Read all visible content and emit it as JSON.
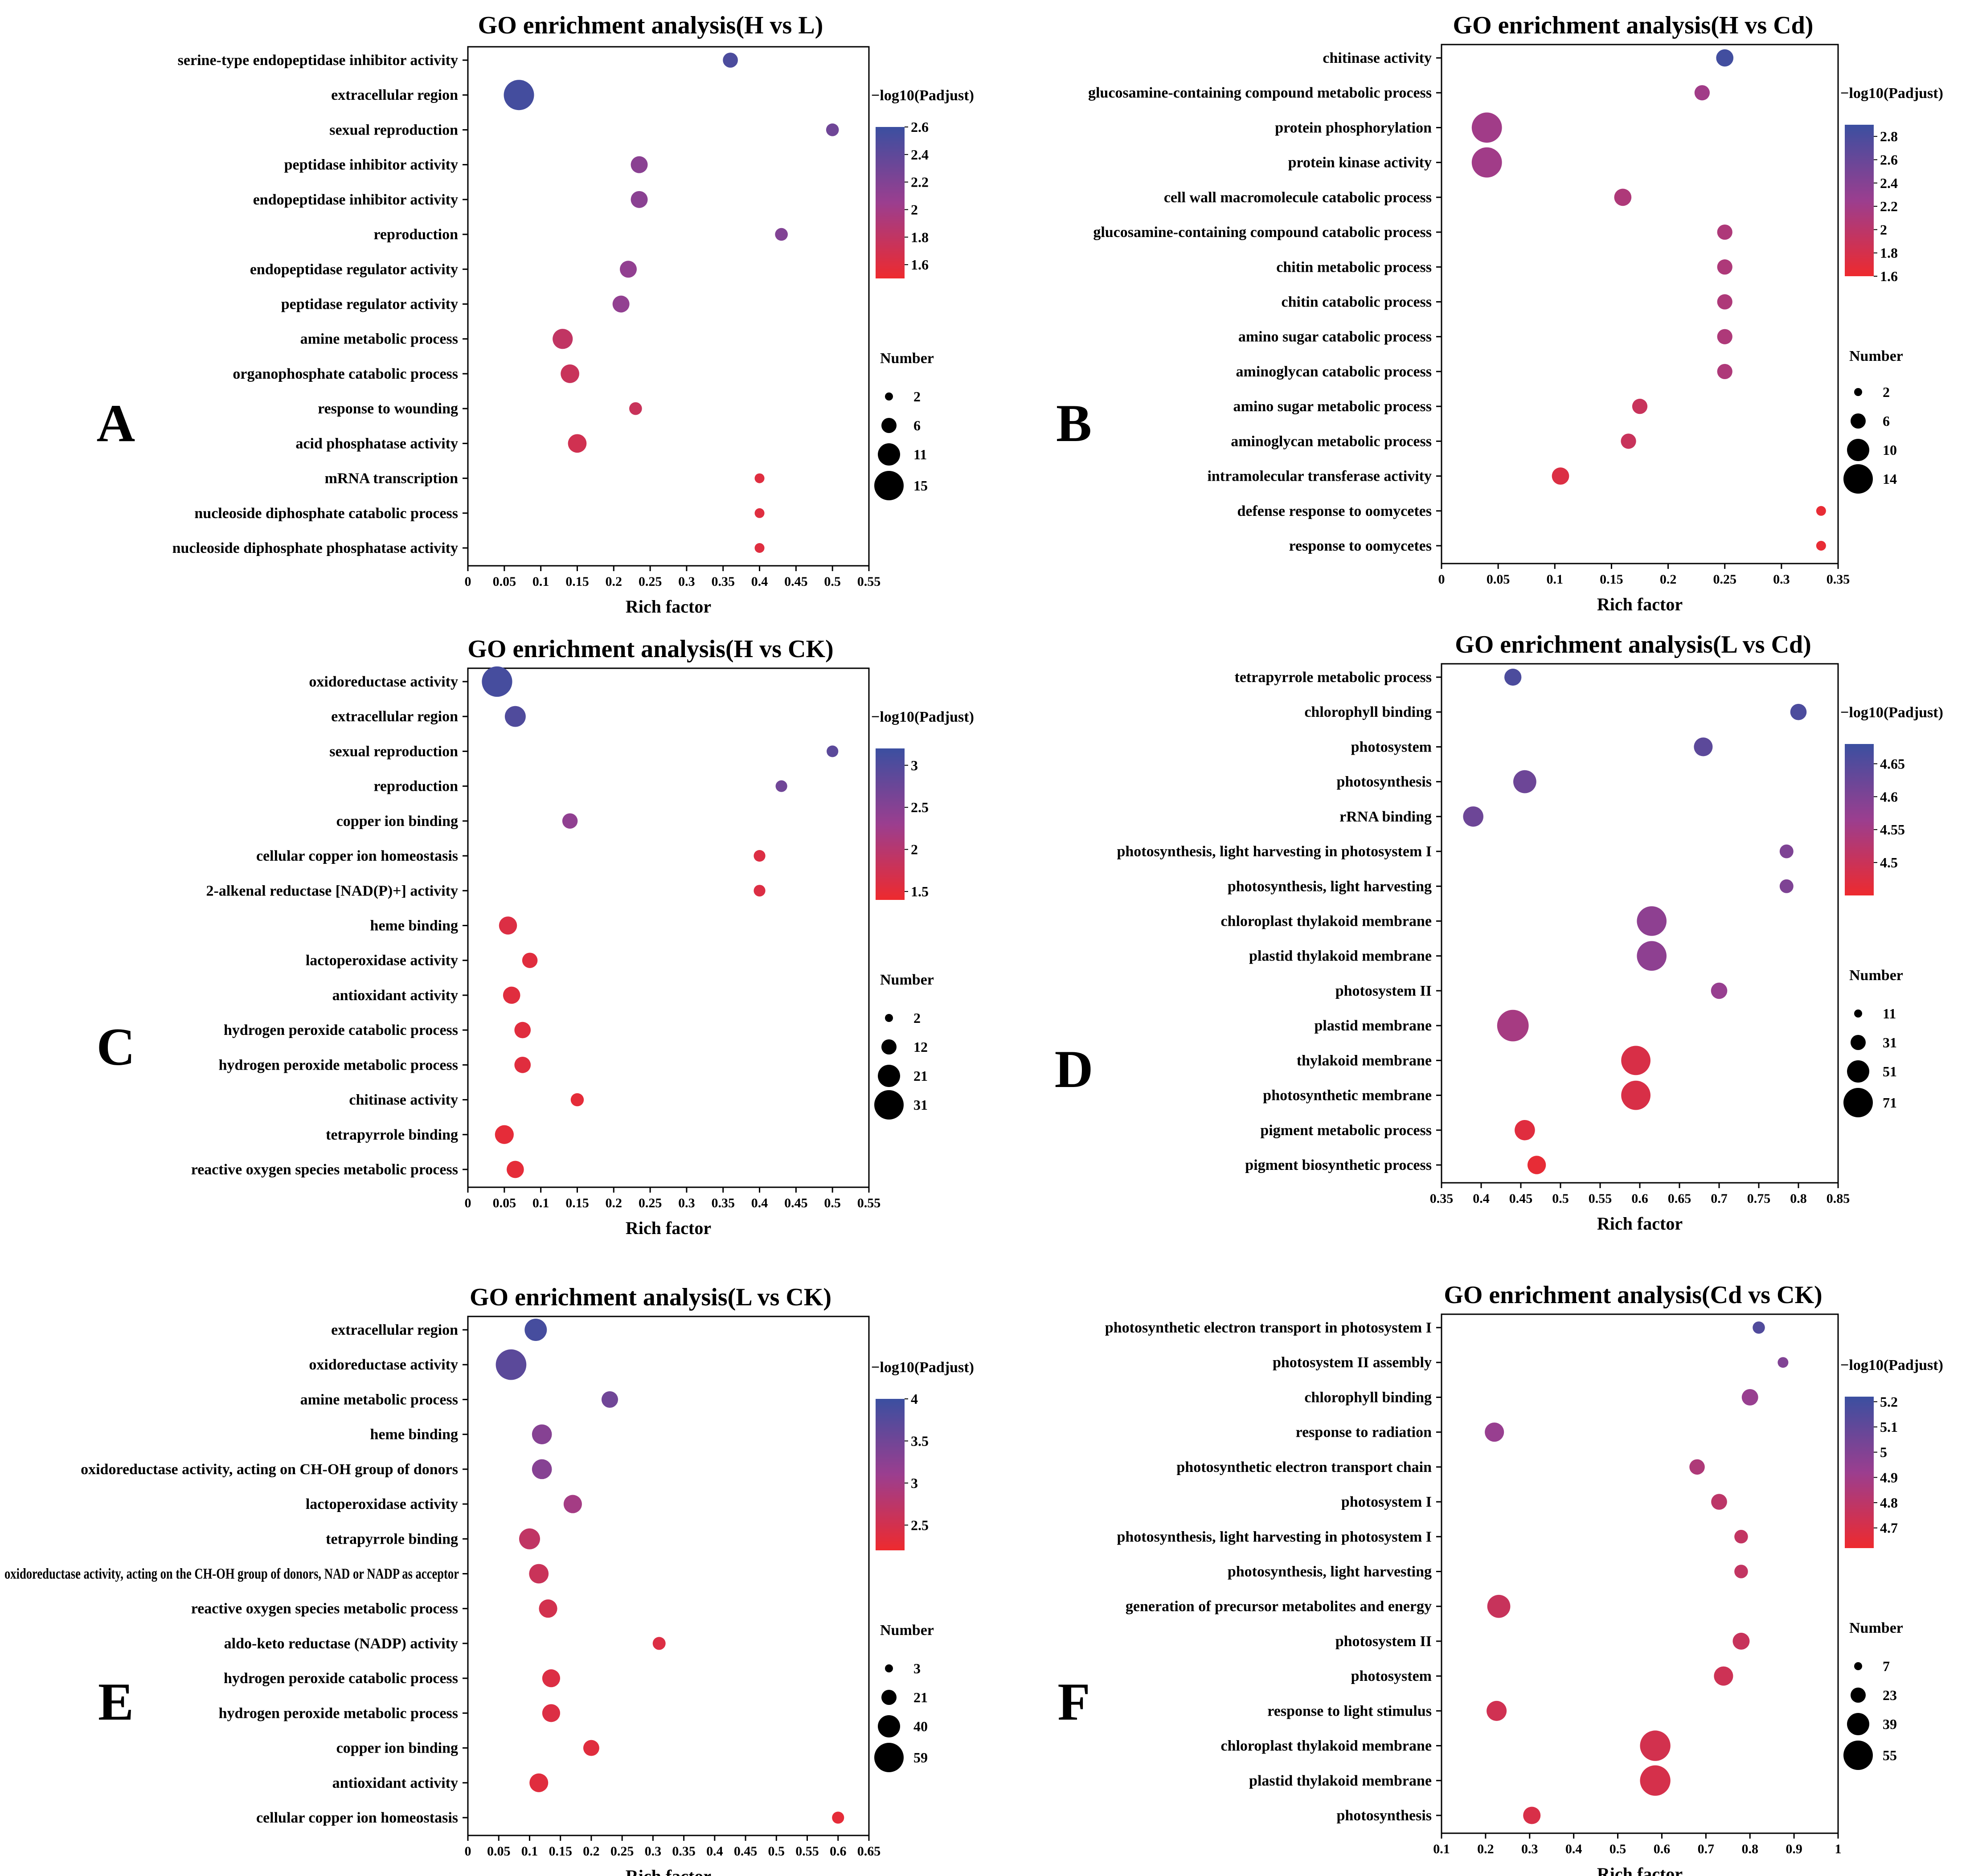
{
  "colors": {
    "high": "#3b4fa0",
    "mid": "#9b3e8f",
    "low": "#ee2a2e",
    "axis": "#000000"
  },
  "legend_text": {
    "color_title": "−log10(Padjust)",
    "size_title": "Number"
  },
  "chart_data": [
    {
      "panel": "A",
      "type": "scatter",
      "title": "GO enrichment analysis(H vs L)",
      "xlabel": "Rich factor",
      "ylabel": "",
      "xlim": [
        0,
        0.55
      ],
      "xticks": [
        "0",
        "0.05",
        "0.1",
        "0.15",
        "0.2",
        "0.25",
        "0.3",
        "0.35",
        "0.4",
        "0.45",
        "0.5",
        "0.55"
      ],
      "color_range": [
        1.5,
        2.6
      ],
      "color_ticks": [
        "2.6",
        "2.4",
        "2.2",
        "2",
        "1.8",
        "1.6"
      ],
      "color_tick_values": [
        2.6,
        2.4,
        2.2,
        2,
        1.8,
        1.6
      ],
      "size_range": [
        1,
        16
      ],
      "size_ticks": [
        "2",
        "6",
        "11",
        "15"
      ],
      "size_tick_values": [
        2,
        6,
        11,
        15
      ],
      "categories": [
        "serine-type endopeptidase inhibitor activity",
        "extracellular region",
        "sexual reproduction",
        "peptidase inhibitor activity",
        "endopeptidase inhibitor activity",
        "reproduction",
        "endopeptidase regulator activity",
        "peptidase regulator activity",
        "amine metabolic process",
        "organophosphate catabolic process",
        "response to wounding",
        "acid phosphatase activity",
        "mRNA transcription",
        "nucleoside diphosphate catabolic process",
        "nucleoside diphosphate phosphatase activity"
      ],
      "rich": [
        0.36,
        0.07,
        0.5,
        0.235,
        0.235,
        0.43,
        0.22,
        0.21,
        0.13,
        0.14,
        0.23,
        0.15,
        0.4,
        0.4,
        0.4
      ],
      "padj": [
        2.5,
        2.55,
        2.3,
        2.15,
        2.15,
        2.2,
        2.1,
        2.1,
        1.8,
        1.75,
        1.75,
        1.7,
        1.6,
        1.6,
        1.6
      ],
      "number": [
        3,
        15,
        2,
        4,
        4,
        2,
        4,
        4,
        6,
        5,
        2,
        5,
        1,
        1,
        1
      ]
    },
    {
      "panel": "B",
      "type": "scatter",
      "title": "GO enrichment analysis(H vs Cd)",
      "xlabel": "Rich factor",
      "ylabel": "",
      "xlim": [
        0,
        0.35
      ],
      "xticks": [
        "0",
        "0.05",
        "0.1",
        "0.15",
        "0.2",
        "0.25",
        "0.3",
        "0.35"
      ],
      "color_range": [
        1.6,
        2.9
      ],
      "color_ticks": [
        "2.8",
        "2.6",
        "2.4",
        "2.2",
        "2",
        "1.8",
        "1.6"
      ],
      "color_tick_values": [
        2.8,
        2.6,
        2.4,
        2.2,
        2,
        1.8,
        1.6
      ],
      "size_range": [
        1,
        15
      ],
      "size_ticks": [
        "2",
        "6",
        "10",
        "14"
      ],
      "size_tick_values": [
        2,
        6,
        10,
        14
      ],
      "categories": [
        "chitinase activity",
        "glucosamine-containing compound metabolic process",
        "protein phosphorylation",
        "protein kinase activity",
        "cell wall macromolecule catabolic process",
        "glucosamine-containing compound catabolic process",
        "chitin metabolic process",
        "chitin catabolic process",
        "amino sugar catabolic process",
        "aminoglycan catabolic process",
        "amino sugar metabolic process",
        "aminoglycan metabolic process",
        "intramolecular transferase activity",
        "defense response to oomycetes",
        "response to oomycetes"
      ],
      "rich": [
        0.25,
        0.23,
        0.04,
        0.04,
        0.16,
        0.25,
        0.25,
        0.25,
        0.25,
        0.25,
        0.175,
        0.165,
        0.105,
        0.335,
        0.335
      ],
      "padj": [
        2.85,
        2.2,
        2.2,
        2.2,
        2.1,
        2.1,
        2.1,
        2.1,
        2.1,
        2.1,
        1.9,
        1.9,
        1.75,
        1.65,
        1.65
      ],
      "number": [
        4,
        3,
        14,
        14,
        4,
        3,
        3,
        3,
        3,
        3,
        3,
        3,
        4,
        1,
        1
      ]
    },
    {
      "panel": "C",
      "type": "scatter",
      "title": "GO enrichment analysis(H vs CK)",
      "xlabel": "Rich factor",
      "ylabel": "",
      "xlim": [
        0,
        0.55
      ],
      "xticks": [
        "0",
        "0.05",
        "0.1",
        "0.15",
        "0.2",
        "0.25",
        "0.3",
        "0.35",
        "0.4",
        "0.45",
        "0.5",
        "0.55"
      ],
      "color_range": [
        1.4,
        3.2
      ],
      "color_ticks": [
        "3",
        "2.5",
        "2",
        "1.5"
      ],
      "color_tick_values": [
        3,
        2.5,
        2,
        1.5
      ],
      "size_range": [
        1,
        33
      ],
      "size_ticks": [
        "2",
        "12",
        "21",
        "31"
      ],
      "size_tick_values": [
        2,
        12,
        21,
        31
      ],
      "categories": [
        "oxidoreductase activity",
        "extracellular region",
        "sexual reproduction",
        "reproduction",
        "copper ion binding",
        "cellular copper ion homeostasis",
        "2-alkenal reductase [NAD(P)+] activity",
        "heme binding",
        "lactoperoxidase activity",
        "antioxidant activity",
        "hydrogen peroxide catabolic process",
        "hydrogen peroxide metabolic process",
        "chitinase activity",
        "tetrapyrrole binding",
        "reactive oxygen species metabolic process"
      ],
      "rich": [
        0.04,
        0.065,
        0.5,
        0.43,
        0.14,
        0.4,
        0.4,
        0.055,
        0.085,
        0.06,
        0.075,
        0.075,
        0.15,
        0.05,
        0.065
      ],
      "padj": [
        3.1,
        3.0,
        2.9,
        2.7,
        2.4,
        1.6,
        1.6,
        1.6,
        1.55,
        1.55,
        1.55,
        1.55,
        1.5,
        1.5,
        1.5
      ],
      "number": [
        31,
        12,
        2,
        2,
        5,
        2,
        2,
        8,
        5,
        7,
        6,
        6,
        3,
        9,
        7
      ]
    },
    {
      "panel": "D",
      "type": "scatter",
      "title": "GO enrichment analysis(L vs Cd)",
      "xlabel": "Rich factor",
      "ylabel": "",
      "xlim": [
        0.35,
        0.85
      ],
      "xticks": [
        "0.35",
        "0.4",
        "0.45",
        "0.5",
        "0.55",
        "0.6",
        "0.65",
        "0.7",
        "0.75",
        "0.8",
        "0.85"
      ],
      "color_range": [
        4.45,
        4.68
      ],
      "color_ticks": [
        "4.65",
        "4.6",
        "4.55",
        "4.5"
      ],
      "color_tick_values": [
        4.65,
        4.6,
        4.55,
        4.5
      ],
      "size_range": [
        5,
        78
      ],
      "size_ticks": [
        "11",
        "31",
        "51",
        "71"
      ],
      "size_tick_values": [
        11,
        31,
        51,
        71
      ],
      "categories": [
        "tetrapyrrole metabolic process",
        "chlorophyll binding",
        "photosystem",
        "photosynthesis",
        "rRNA binding",
        "photosynthesis, light harvesting in photosystem I",
        "photosynthesis, light harvesting",
        "chloroplast thylakoid membrane",
        "plastid thylakoid membrane",
        "photosystem II",
        "plastid membrane",
        "thylakoid membrane",
        "photosynthetic membrane",
        "pigment metabolic process",
        "pigment biosynthetic process"
      ],
      "rich": [
        0.44,
        0.8,
        0.68,
        0.455,
        0.39,
        0.785,
        0.785,
        0.615,
        0.615,
        0.7,
        0.44,
        0.595,
        0.595,
        0.455,
        0.47
      ],
      "padj": [
        4.66,
        4.66,
        4.64,
        4.62,
        4.62,
        4.6,
        4.6,
        4.58,
        4.58,
        4.57,
        4.55,
        4.48,
        4.48,
        4.47,
        4.46
      ],
      "number": [
        20,
        18,
        25,
        40,
        30,
        12,
        12,
        70,
        70,
        18,
        80,
        68,
        68,
        30,
        24
      ]
    },
    {
      "panel": "E",
      "type": "scatter",
      "title": "GO enrichment analysis(L vs CK)",
      "xlabel": "Rich factor",
      "ylabel": "",
      "xlim": [
        0,
        0.65
      ],
      "xticks": [
        "0",
        "0.05",
        "0.1",
        "0.15",
        "0.2",
        "0.25",
        "0.3",
        "0.35",
        "0.4",
        "0.45",
        "0.5",
        "0.55",
        "0.6",
        "0.65"
      ],
      "color_range": [
        2.2,
        4.0
      ],
      "color_ticks": [
        "4",
        "3.5",
        "3",
        "2.5"
      ],
      "color_tick_values": [
        4,
        3.5,
        3,
        2.5
      ],
      "size_range": [
        1,
        62
      ],
      "size_ticks": [
        "3",
        "21",
        "40",
        "59"
      ],
      "size_tick_values": [
        3,
        21,
        40,
        59
      ],
      "categories": [
        "extracellular region",
        "oxidoreductase activity",
        "amine metabolic process",
        "heme binding",
        "oxidoreductase activity, acting on CH-OH group of donors",
        "lactoperoxidase activity",
        "tetrapyrrole binding",
        "oxidoreductase activity, acting on the CH-OH group of donors, NAD or NADP as acceptor",
        "reactive oxygen species metabolic process",
        "aldo-keto reductase (NADP) activity",
        "hydrogen peroxide catabolic process",
        "hydrogen peroxide metabolic process",
        "copper ion binding",
        "antioxidant activity",
        "cellular copper ion homeostasis"
      ],
      "rich": [
        0.11,
        0.07,
        0.23,
        0.12,
        0.12,
        0.17,
        0.1,
        0.115,
        0.13,
        0.31,
        0.135,
        0.135,
        0.2,
        0.115,
        0.6
      ],
      "padj": [
        3.9,
        3.7,
        3.5,
        3.3,
        3.3,
        3.0,
        2.7,
        2.6,
        2.5,
        2.4,
        2.4,
        2.4,
        2.35,
        2.35,
        2.3
      ],
      "number": [
        25,
        59,
        10,
        18,
        18,
        14,
        21,
        17,
        14,
        4,
        13,
        13,
        9,
        15,
        3
      ]
    },
    {
      "panel": "F",
      "type": "scatter",
      "title": "GO enrichment analysis(Cd vs CK)",
      "xlabel": "Rich factor",
      "ylabel": "",
      "xlim": [
        0.1,
        1.0
      ],
      "xticks": [
        "0.1",
        "0.2",
        "0.3",
        "0.4",
        "0.5",
        "0.6",
        "0.7",
        "0.8",
        "0.9",
        "1"
      ],
      "color_range": [
        4.62,
        5.22
      ],
      "color_ticks": [
        "5.2",
        "5.1",
        "5",
        "4.9",
        "4.8",
        "4.7"
      ],
      "color_tick_values": [
        5.2,
        5.1,
        5,
        4.9,
        4.8,
        4.7
      ],
      "size_range": [
        4,
        58
      ],
      "size_ticks": [
        "7",
        "23",
        "39",
        "55"
      ],
      "size_tick_values": [
        7,
        23,
        39,
        55
      ],
      "categories": [
        "photosynthetic electron transport in photosystem I",
        "photosystem II assembly",
        "chlorophyll binding",
        "response to radiation",
        "photosynthetic electron transport chain",
        "photosystem I",
        "photosynthesis, light harvesting in photosystem I",
        "photosynthesis, light harvesting",
        "generation of precursor metabolites and energy",
        "photosystem II",
        "photosystem",
        "response to light stimulus",
        "chloroplast thylakoid membrane",
        "plastid thylakoid membrane",
        "photosynthesis"
      ],
      "rich": [
        0.82,
        0.875,
        0.8,
        0.22,
        0.68,
        0.73,
        0.78,
        0.78,
        0.23,
        0.78,
        0.74,
        0.225,
        0.585,
        0.585,
        0.305
      ],
      "padj": [
        5.15,
        5.0,
        4.93,
        4.93,
        4.85,
        4.8,
        4.78,
        4.78,
        4.76,
        4.76,
        4.74,
        4.73,
        4.72,
        4.71,
        4.7
      ],
      "number": [
        7,
        5,
        14,
        20,
        12,
        13,
        9,
        9,
        30,
        15,
        20,
        22,
        55,
        55,
        16
      ]
    }
  ]
}
